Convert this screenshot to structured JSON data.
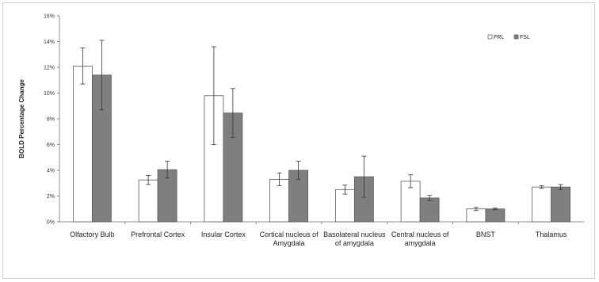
{
  "chart_data": {
    "type": "bar",
    "title": "",
    "xlabel": "",
    "ylabel": "BOLD Percentage Change",
    "ylim": [
      0,
      16
    ],
    "yticks": [
      "0%",
      "2%",
      "4%",
      "6%",
      "8%",
      "10%",
      "12%",
      "14%",
      "16%"
    ],
    "grid": false,
    "legend_position": "top-right",
    "categories": [
      [
        "Olfactory Bulb"
      ],
      [
        "Prefrontal Cortex"
      ],
      [
        "Insular Cortex"
      ],
      [
        "Cortical nucleus of",
        "Amygdala"
      ],
      [
        "Basolateral nucleus",
        "of amygdala"
      ],
      [
        "Central nucleus of",
        "amygdala"
      ],
      [
        "BNST"
      ],
      [
        "Thalamus"
      ]
    ],
    "series": [
      {
        "name": "FRL",
        "color": "#ffffff",
        "values": [
          12.1,
          3.25,
          9.8,
          3.3,
          2.5,
          3.15,
          1.0,
          2.7
        ],
        "error": [
          1.4,
          0.35,
          3.8,
          0.5,
          0.35,
          0.5,
          0.12,
          0.1
        ]
      },
      {
        "name": "FSL",
        "color": "#7f7f7f",
        "values": [
          11.4,
          4.05,
          8.45,
          4.0,
          3.5,
          1.85,
          1.0,
          2.7
        ],
        "error": [
          2.7,
          0.65,
          1.9,
          0.7,
          1.6,
          0.2,
          0.06,
          0.2
        ]
      }
    ]
  }
}
